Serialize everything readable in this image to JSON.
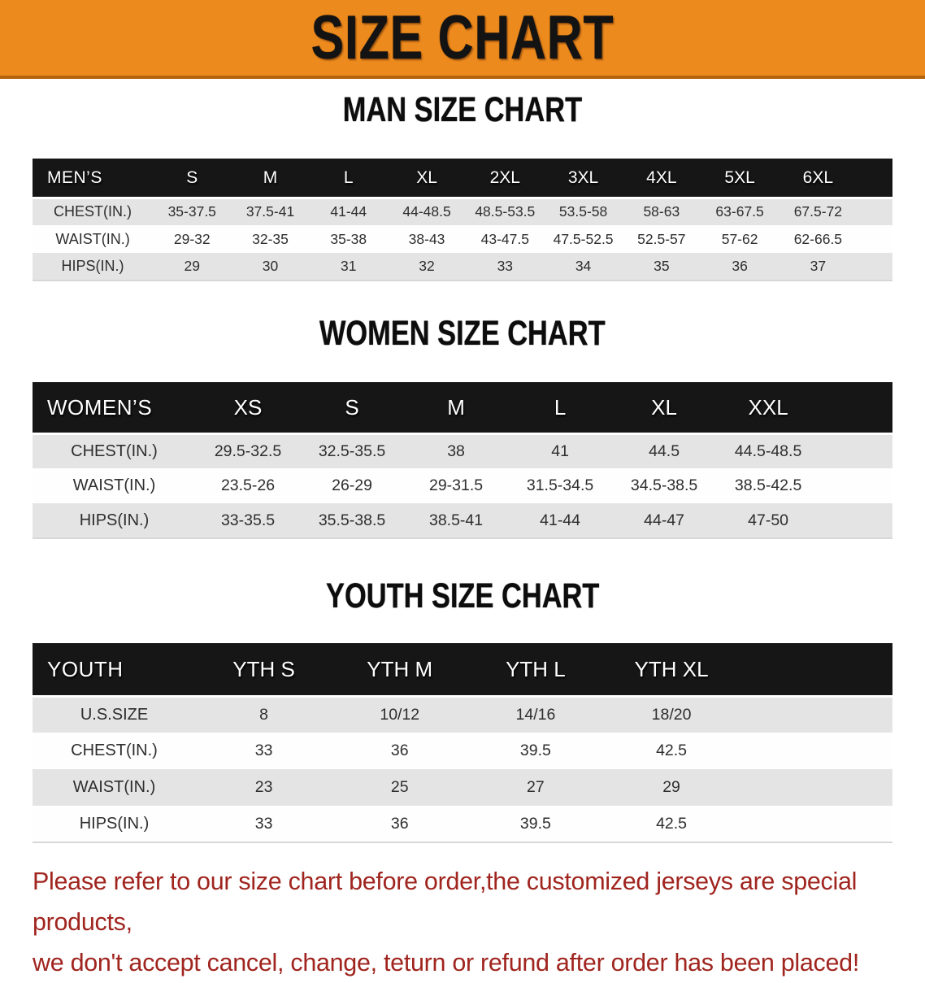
{
  "banner": {
    "title": "SIZE CHART"
  },
  "colors": {
    "banner_bg": "#ec8a1d",
    "banner_edge": "#b4640f",
    "band": "#161616",
    "row_grey": "#e4e4e4",
    "row_white": "#fefefe",
    "warning": "#a0251f"
  },
  "sections": [
    {
      "heading": "MAN SIZE CHART",
      "table": {
        "label": "MEN’S",
        "columns": [
          "S",
          "M",
          "L",
          "XL",
          "2XL",
          "3XL",
          "4XL",
          "5XL",
          "6XL"
        ],
        "rows": [
          {
            "label": "CHEST(IN.)",
            "values": [
              "35-37.5",
              "37.5-41",
              "41-44",
              "44-48.5",
              "48.5-53.5",
              "53.5-58",
              "58-63",
              "63-67.5",
              "67.5-72"
            ]
          },
          {
            "label": "WAIST(IN.)",
            "values": [
              "29-32",
              "32-35",
              "35-38",
              "38-43",
              "43-47.5",
              "47.5-52.5",
              "52.5-57",
              "57-62",
              "62-66.5"
            ]
          },
          {
            "label": "HIPS(IN.)",
            "values": [
              "29",
              "30",
              "31",
              "32",
              "33",
              "34",
              "35",
              "36",
              "37"
            ]
          }
        ]
      }
    },
    {
      "heading": "WOMEN SIZE CHART",
      "table": {
        "label": "WOMEN’S",
        "columns": [
          "XS",
          "S",
          "M",
          "L",
          "XL",
          "XXL"
        ],
        "rows": [
          {
            "label": "CHEST(IN.)",
            "values": [
              "29.5-32.5",
              "32.5-35.5",
              "38",
              "41",
              "44.5",
              "44.5-48.5"
            ]
          },
          {
            "label": "WAIST(IN.)",
            "values": [
              "23.5-26",
              "26-29",
              "29-31.5",
              "31.5-34.5",
              "34.5-38.5",
              "38.5-42.5"
            ]
          },
          {
            "label": "HIPS(IN.)",
            "values": [
              "33-35.5",
              "35.5-38.5",
              "38.5-41",
              "41-44",
              "44-47",
              "47-50"
            ]
          }
        ]
      }
    },
    {
      "heading": "YOUTH SIZE CHART",
      "table": {
        "label": "YOUTH",
        "columns": [
          "YTH S",
          "YTH M",
          "YTH L",
          "YTH XL"
        ],
        "rows": [
          {
            "label": "U.S.SIZE",
            "values": [
              "8",
              "10/12",
              "14/16",
              "18/20"
            ]
          },
          {
            "label": "CHEST(IN.)",
            "values": [
              "33",
              "36",
              "39.5",
              "42.5"
            ]
          },
          {
            "label": "WAIST(IN.)",
            "values": [
              "23",
              "25",
              "27",
              "29"
            ]
          },
          {
            "label": "HIPS(IN.)",
            "values": [
              "33",
              "36",
              "39.5",
              "42.5"
            ]
          }
        ]
      }
    }
  ],
  "footer": {
    "lines": [
      "Please refer to our size chart before order,the customized jerseys are special products,",
      "we don't accept cancel, change, teturn or refund after order has been placed!"
    ]
  }
}
